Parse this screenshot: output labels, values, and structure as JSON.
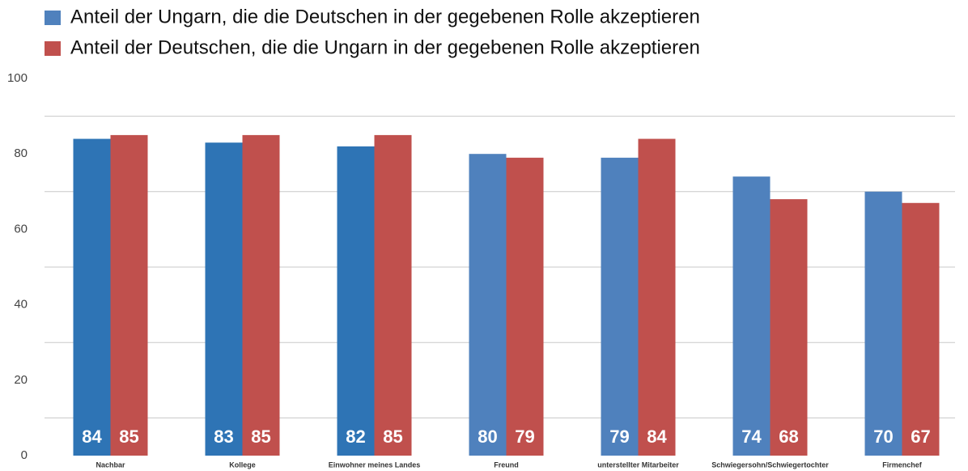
{
  "chart_data": {
    "type": "bar",
    "categories": [
      "Nachbar",
      "Kollege",
      "Einwohner meines Landes",
      "Freund",
      "unterstellter Mitarbeiter",
      "Schwiegersohn/Schwiegertochter",
      "Firmenchef"
    ],
    "series": [
      {
        "name": "Anteil der Ungarn, die die Deutschen in der gegebenen Rolle akzeptieren",
        "color": "#4f81bd",
        "colors": [
          "#2e74b5",
          "#2e74b5",
          "#2e74b5",
          "#4f81bd",
          "#4f81bd",
          "#4f81bd",
          "#4f81bd"
        ],
        "values": [
          84,
          83,
          82,
          80,
          79,
          74,
          70
        ]
      },
      {
        "name": "Anteil der Deutschen, die die Ungarn in der gegebenen Rolle akzeptieren",
        "color": "#c0504d",
        "values": [
          85,
          85,
          85,
          79,
          84,
          68,
          67
        ]
      }
    ],
    "ylim": [
      0,
      100
    ],
    "yticks": [
      0,
      20,
      40,
      60,
      80,
      100
    ],
    "gridlines": [
      10,
      30,
      50,
      70,
      90
    ],
    "legend": "top-left"
  }
}
